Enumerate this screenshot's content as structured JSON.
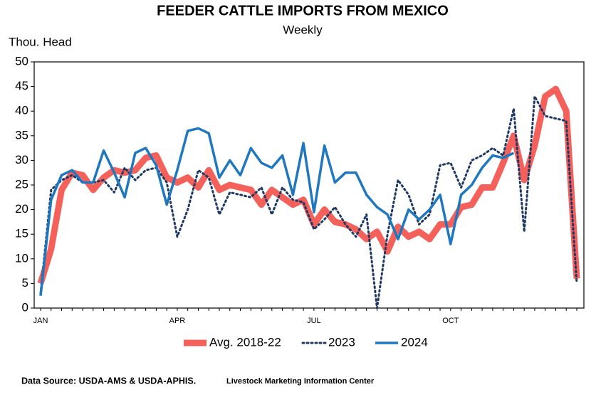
{
  "chart_data": {
    "type": "line",
    "title": "FEEDER CATTLE IMPORTS FROM MEXICO",
    "subtitle": "Weekly",
    "y_label": "Thou. Head",
    "source": "Data Source:  USDA-AMS & USDA-APHIS.",
    "source_org": "Livestock Marketing Information Center",
    "categories": [
      "JAN",
      null,
      null,
      null,
      null,
      null,
      null,
      null,
      null,
      null,
      null,
      null,
      null,
      "APR",
      null,
      null,
      null,
      null,
      null,
      null,
      null,
      null,
      null,
      null,
      null,
      null,
      "JUL",
      null,
      null,
      null,
      null,
      null,
      null,
      null,
      null,
      null,
      null,
      null,
      null,
      "OCT",
      null,
      null,
      null,
      null,
      null,
      null,
      null,
      null,
      null,
      null,
      null,
      null
    ],
    "ylim": [
      0,
      50
    ],
    "yticks": [
      0,
      5,
      10,
      15,
      20,
      25,
      30,
      35,
      40,
      45,
      50
    ],
    "grid": false,
    "legend": "bottom",
    "series": [
      {
        "name": "Avg. 2018-22",
        "color": "#f4605a",
        "width": 9,
        "dash": "solid",
        "values": [
          5,
          12,
          24,
          27.5,
          27,
          24,
          26.5,
          28,
          27.5,
          28,
          30.5,
          31,
          26.5,
          25.5,
          26.5,
          24.5,
          28,
          24,
          25,
          24.5,
          24,
          21,
          24,
          22.5,
          21,
          22,
          17,
          20,
          17.5,
          17,
          16,
          14,
          15.5,
          11.5,
          16.5,
          14.5,
          15.5,
          14,
          17,
          17,
          20.5,
          21,
          24.5,
          24.5,
          29.5,
          35,
          26,
          33,
          43,
          44.5,
          40,
          6
        ]
      },
      {
        "name": "2023",
        "color": "#1f3864",
        "width": 3,
        "dash": "dot",
        "values": [
          3,
          24,
          26,
          27,
          25.5,
          25.5,
          26,
          23.5,
          28.5,
          26,
          28,
          28.5,
          25.5,
          14.5,
          20,
          28,
          26.5,
          19,
          23.5,
          23,
          22.5,
          24.5,
          19,
          24.5,
          22,
          21.5,
          16,
          18,
          20.5,
          17,
          14.5,
          19,
          0,
          15,
          26,
          23,
          17,
          19,
          29,
          29.5,
          24.5,
          30,
          31,
          32.5,
          31,
          40.5,
          15.5,
          43,
          39,
          38.5,
          38,
          5
        ]
      },
      {
        "name": "2024",
        "color": "#1f77bf",
        "width": 3.5,
        "dash": "solid",
        "values": [
          2.5,
          22,
          27,
          28,
          25.5,
          25.5,
          32,
          27.5,
          22.5,
          31.5,
          32.5,
          29,
          21,
          28,
          36,
          36.5,
          35.5,
          26.5,
          30,
          27,
          32.5,
          29.5,
          28.5,
          31,
          23,
          33.5,
          19.5,
          33,
          25.5,
          27.5,
          27.5,
          23,
          20.5,
          19,
          14,
          20,
          18,
          20,
          23,
          13,
          23,
          25,
          28.5,
          31,
          30.5,
          31.5,
          null,
          null,
          null,
          null,
          null,
          null
        ]
      }
    ]
  }
}
